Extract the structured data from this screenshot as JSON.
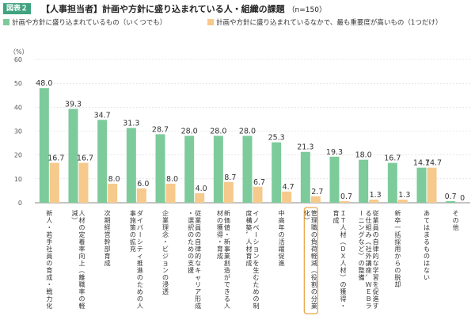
{
  "header": {
    "badge": "図表２",
    "title": "【人事担当者】計画や方針に盛り込まれている人・組織の課題",
    "n_label": "（n=150）"
  },
  "chart_data": {
    "type": "bar",
    "y_unit_label": "（%）",
    "ylim": [
      0,
      60
    ],
    "yticks": [
      0,
      10,
      20,
      30,
      40,
      50,
      60
    ],
    "grid": true,
    "legend_placement": "top",
    "series": [
      {
        "name": "計画や方針に盛り込まれているもの（いくつでも）",
        "color": "#7dcb9b",
        "values": [
          48.0,
          39.3,
          34.7,
          31.3,
          28.7,
          28.0,
          28.0,
          28.0,
          25.3,
          21.3,
          19.3,
          18.0,
          16.7,
          14.7,
          0.7
        ]
      },
      {
        "name": "計画や方針に盛り込まれているなかで、最も重要度が高いもの（1つだけ）",
        "color": "#f6c98c",
        "values": [
          16.7,
          16.7,
          8.0,
          6.0,
          8.0,
          4.0,
          8.7,
          6.7,
          4.7,
          2.7,
          0.7,
          1.3,
          1.3,
          14.7,
          0
        ]
      }
    ],
    "categories": [
      "新人・若手社員の育成・戦力化",
      "人材の定着率向上（離職率の軽減）",
      "次期経営幹部育成",
      "ダイバーシティ推進のための人事施策の拡充",
      "企業理念・ビジョンの浸透",
      "従業員の自律的なキャリア形成・選択のための支援",
      "新価値・新事業創造ができる人材の獲得・育成",
      "イノベーションを生むための制度構築、人材育成",
      "中高年の活躍促進",
      "管理職の負荷軽減（役割の分業化）",
      "ＩＴ人材（ＤＸ人材）の獲得・育成",
      "従業員の自律的な学習を促進する仕組み（社外講座、ＷＥＢラーニングなど）の整備",
      "新卒一括採用からの脱却",
      "あてはまるものはない",
      "その他"
    ],
    "highlight_category": "管理職の負荷軽減（役割の分業化）",
    "highlight_color": "#e8a84a"
  }
}
